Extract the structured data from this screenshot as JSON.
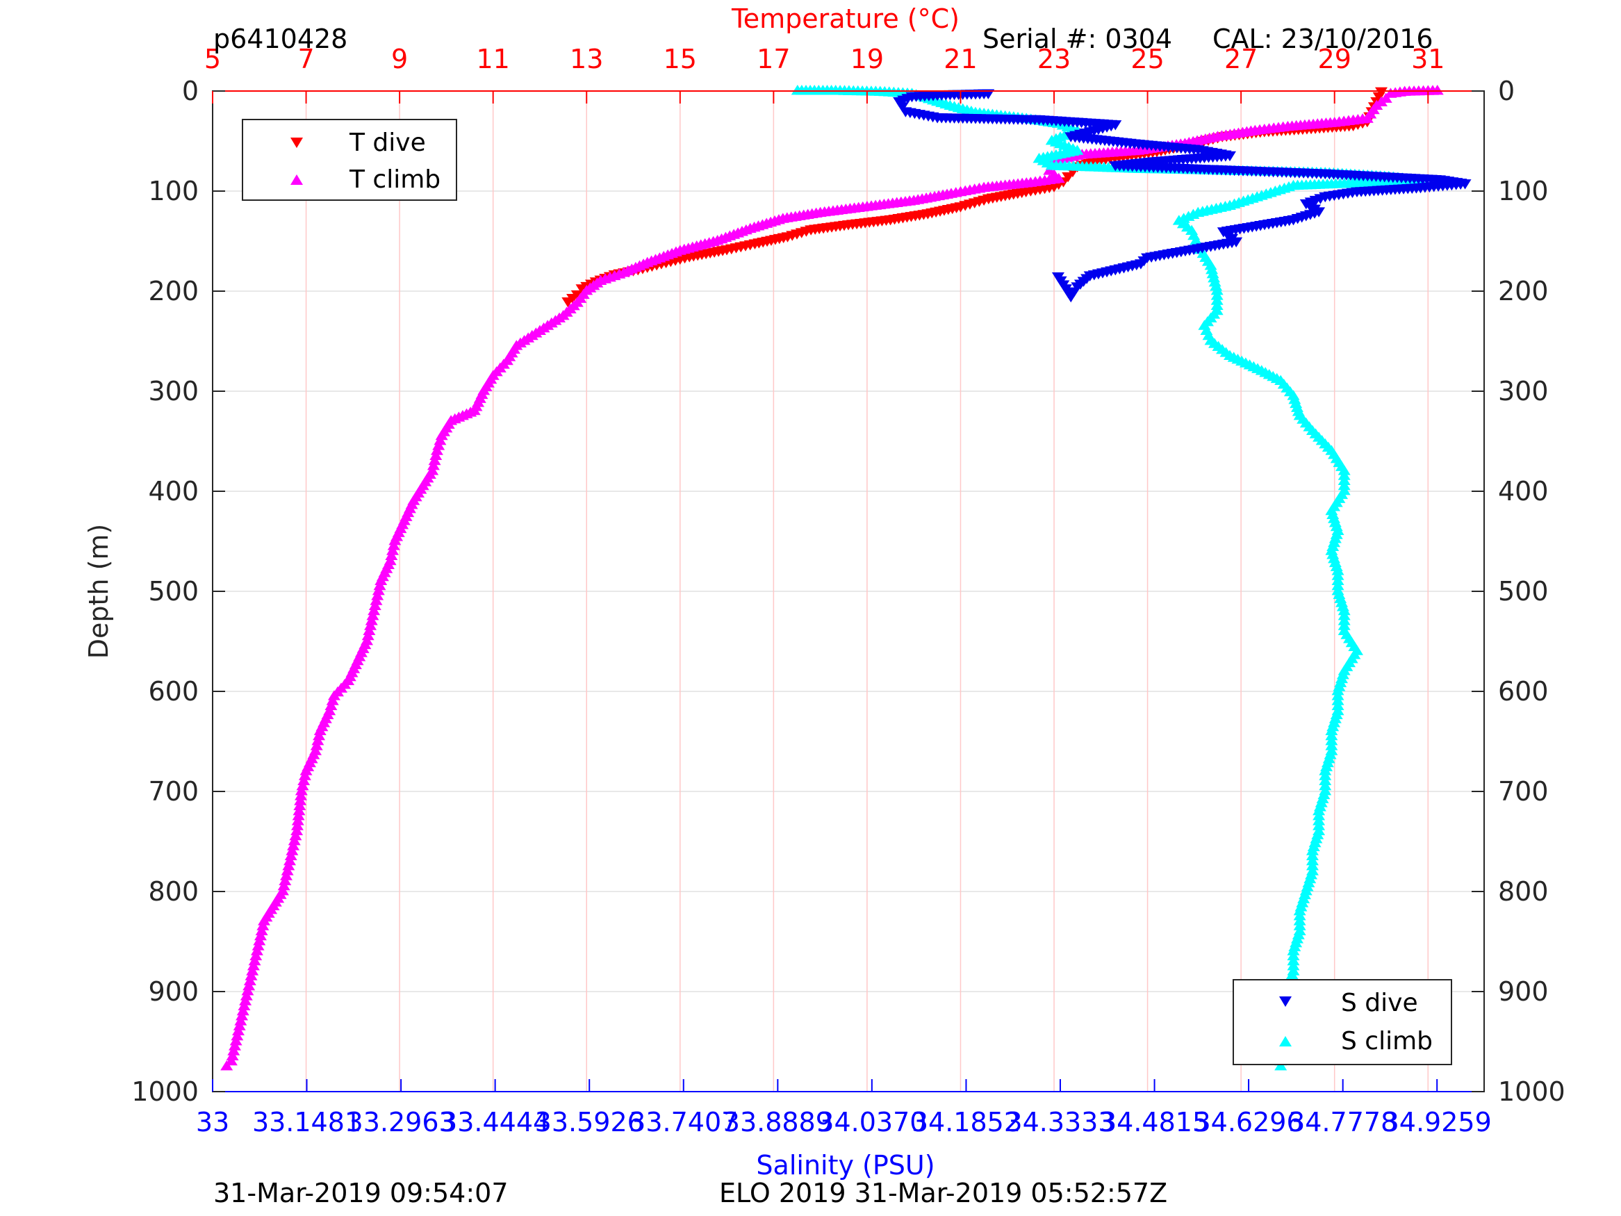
{
  "header": {
    "profile_id": "p6410428",
    "serial": "Serial #: 0304",
    "cal": "CAL: 23/10/2016"
  },
  "footer": {
    "left_timestamp": "31-Mar-2019 09:54:07",
    "center_label": "ELO 2019 31-Mar-2019 05:52:57Z"
  },
  "colors": {
    "t_dive": "#ff0000",
    "t_climb": "#ff00ff",
    "s_dive": "#0000ee",
    "s_climb": "#00ffff",
    "temp_axis": "#ff0000",
    "sal_axis": "#0000ff",
    "grid": "#e0e0e0",
    "temp_grid": "#ffc8c8"
  },
  "chart_data": {
    "type": "scatter",
    "title": "",
    "ylabel": "Depth (m)",
    "ylim": [
      0,
      1000
    ],
    "yreverse": true,
    "yticks": [
      "0",
      "100",
      "200",
      "300",
      "400",
      "500",
      "600",
      "700",
      "800",
      "900",
      "1000"
    ],
    "temp_axis": {
      "label": "Temperature (°C)",
      "lim": [
        5,
        32.2
      ],
      "ticks": [
        "5",
        "7",
        "9",
        "11",
        "13",
        "15",
        "17",
        "19",
        "21",
        "23",
        "25",
        "27",
        "29",
        "31"
      ]
    },
    "sal_axis": {
      "label": "Salinity (PSU)",
      "lim": [
        33,
        35.0
      ],
      "ticks": [
        "33",
        "33.1481",
        "33.2963",
        "33.4444",
        "33.5926",
        "33.7407",
        "33.8889",
        "34.0370",
        "34.1852",
        "34.3333",
        "34.4815",
        "34.6296",
        "34.7778",
        "34.9259"
      ]
    },
    "legend_temp": [
      {
        "name": "T dive",
        "marker": "triangle-down",
        "color": "#ff0000"
      },
      {
        "name": "T climb",
        "marker": "triangle-up",
        "color": "#ff00ff"
      }
    ],
    "legend_sal": [
      {
        "name": "S dive",
        "marker": "triangle-down",
        "color": "#0000ee"
      },
      {
        "name": "S climb",
        "marker": "triangle-up",
        "color": "#00ffff"
      }
    ],
    "series": [
      {
        "name": "T dive",
        "axis": "temp",
        "marker": "down",
        "color": "#ff0000",
        "points": [
          [
            30.0,
            0
          ],
          [
            29.95,
            5
          ],
          [
            29.9,
            10
          ],
          [
            29.8,
            20
          ],
          [
            29.7,
            30
          ],
          [
            29.4,
            34
          ],
          [
            28.5,
            37
          ],
          [
            27.5,
            40
          ],
          [
            26.6,
            45
          ],
          [
            26.0,
            52
          ],
          [
            25.2,
            60
          ],
          [
            24.3,
            66
          ],
          [
            23.8,
            70
          ],
          [
            23.5,
            75
          ],
          [
            23.4,
            80
          ],
          [
            23.3,
            85
          ],
          [
            23.2,
            90
          ],
          [
            23.0,
            95
          ],
          [
            22.4,
            100
          ],
          [
            21.6,
            107
          ],
          [
            21.0,
            115
          ],
          [
            20.3,
            122
          ],
          [
            19.5,
            128
          ],
          [
            18.6,
            133
          ],
          [
            17.8,
            138
          ],
          [
            17.3,
            145
          ],
          [
            16.6,
            152
          ],
          [
            16.0,
            158
          ],
          [
            15.2,
            165
          ],
          [
            14.6,
            172
          ],
          [
            14.1,
            178
          ],
          [
            13.6,
            183
          ],
          [
            13.2,
            190
          ],
          [
            12.9,
            197
          ],
          [
            12.8,
            203
          ],
          [
            12.6,
            210
          ]
        ]
      },
      {
        "name": "T climb",
        "axis": "temp",
        "marker": "up",
        "color": "#ff00ff",
        "points": [
          [
            31.2,
            0
          ],
          [
            30.5,
            1
          ],
          [
            30.2,
            3
          ],
          [
            30.1,
            8
          ],
          [
            29.9,
            15
          ],
          [
            29.7,
            28
          ],
          [
            29.0,
            32
          ],
          [
            28.0,
            36
          ],
          [
            27.3,
            40
          ],
          [
            26.5,
            46
          ],
          [
            25.8,
            53
          ],
          [
            24.8,
            60
          ],
          [
            23.6,
            64
          ],
          [
            23.0,
            70
          ],
          [
            22.9,
            80
          ],
          [
            23.1,
            88
          ],
          [
            22.5,
            92
          ],
          [
            21.5,
            97
          ],
          [
            20.8,
            103
          ],
          [
            20.0,
            110
          ],
          [
            19.0,
            116
          ],
          [
            18.0,
            122
          ],
          [
            17.2,
            128
          ],
          [
            16.5,
            138
          ],
          [
            15.8,
            150
          ],
          [
            15.0,
            160
          ],
          [
            14.3,
            172
          ],
          [
            13.8,
            182
          ],
          [
            13.3,
            190
          ],
          [
            13.0,
            200
          ],
          [
            12.8,
            212
          ],
          [
            12.5,
            225
          ],
          [
            12.0,
            240
          ],
          [
            11.5,
            255
          ],
          [
            11.3,
            270
          ],
          [
            11.0,
            285
          ],
          [
            10.8,
            300
          ],
          [
            10.6,
            320
          ],
          [
            10.1,
            330
          ],
          [
            9.9,
            345
          ],
          [
            9.8,
            360
          ],
          [
            9.7,
            380
          ],
          [
            9.5,
            395
          ],
          [
            9.3,
            410
          ],
          [
            9.1,
            430
          ],
          [
            8.9,
            450
          ],
          [
            8.8,
            470
          ],
          [
            8.6,
            490
          ],
          [
            8.5,
            510
          ],
          [
            8.4,
            530
          ],
          [
            8.3,
            550
          ],
          [
            8.1,
            570
          ],
          [
            7.9,
            590
          ],
          [
            7.6,
            605
          ],
          [
            7.5,
            620
          ],
          [
            7.3,
            640
          ],
          [
            7.2,
            660
          ],
          [
            7.0,
            680
          ],
          [
            6.9,
            700
          ],
          [
            6.85,
            720
          ],
          [
            6.8,
            740
          ],
          [
            6.7,
            760
          ],
          [
            6.6,
            780
          ],
          [
            6.5,
            800
          ],
          [
            6.3,
            815
          ],
          [
            6.1,
            830
          ],
          [
            6.0,
            850
          ],
          [
            5.9,
            870
          ],
          [
            5.8,
            890
          ],
          [
            5.7,
            910
          ],
          [
            5.6,
            930
          ],
          [
            5.5,
            950
          ],
          [
            5.4,
            970
          ],
          [
            5.3,
            975
          ]
        ]
      },
      {
        "name": "S dive",
        "axis": "sal",
        "marker": "down",
        "color": "#0000ee",
        "points": [
          [
            34.22,
            2
          ],
          [
            34.16,
            3
          ],
          [
            34.1,
            5
          ],
          [
            34.08,
            10
          ],
          [
            34.09,
            20
          ],
          [
            34.14,
            26
          ],
          [
            34.3,
            28
          ],
          [
            34.42,
            33
          ],
          [
            34.38,
            40
          ],
          [
            34.35,
            45
          ],
          [
            34.45,
            52
          ],
          [
            34.55,
            58
          ],
          [
            34.6,
            64
          ],
          [
            34.48,
            70
          ],
          [
            34.42,
            74
          ],
          [
            34.58,
            78
          ],
          [
            34.75,
            82
          ],
          [
            34.93,
            88
          ],
          [
            34.97,
            92
          ],
          [
            34.9,
            96
          ],
          [
            34.8,
            100
          ],
          [
            34.75,
            105
          ],
          [
            34.72,
            112
          ],
          [
            34.74,
            120
          ],
          [
            34.7,
            128
          ],
          [
            34.59,
            140
          ],
          [
            34.61,
            150
          ],
          [
            34.47,
            166
          ],
          [
            34.46,
            172
          ],
          [
            34.42,
            178
          ],
          [
            34.38,
            184
          ],
          [
            34.36,
            195
          ],
          [
            34.35,
            205
          ],
          [
            34.33,
            185
          ]
        ]
      },
      {
        "name": "S climb",
        "axis": "sal",
        "marker": "up",
        "color": "#00ffff",
        "points": [
          [
            33.92,
            0
          ],
          [
            33.98,
            0
          ],
          [
            34.05,
            1
          ],
          [
            34.1,
            3
          ],
          [
            34.16,
            15
          ],
          [
            34.2,
            22
          ],
          [
            34.28,
            28
          ],
          [
            34.33,
            33
          ],
          [
            34.36,
            40
          ],
          [
            34.32,
            50
          ],
          [
            34.36,
            60
          ],
          [
            34.3,
            68
          ],
          [
            34.32,
            75
          ],
          [
            34.45,
            78
          ],
          [
            34.6,
            80
          ],
          [
            34.75,
            82
          ],
          [
            34.85,
            86
          ],
          [
            34.9,
            90
          ],
          [
            34.7,
            95
          ],
          [
            34.65,
            105
          ],
          [
            34.6,
            115
          ],
          [
            34.55,
            122
          ],
          [
            34.52,
            130
          ],
          [
            34.54,
            140
          ],
          [
            34.55,
            155
          ],
          [
            34.57,
            175
          ],
          [
            34.58,
            200
          ],
          [
            34.58,
            220
          ],
          [
            34.56,
            235
          ],
          [
            34.57,
            250
          ],
          [
            34.6,
            265
          ],
          [
            34.65,
            280
          ],
          [
            34.68,
            290
          ],
          [
            34.7,
            305
          ],
          [
            34.71,
            325
          ],
          [
            34.73,
            340
          ],
          [
            34.76,
            360
          ],
          [
            34.78,
            380
          ],
          [
            34.78,
            400
          ],
          [
            34.76,
            420
          ],
          [
            34.77,
            440
          ],
          [
            34.76,
            460
          ],
          [
            34.77,
            480
          ],
          [
            34.77,
            500
          ],
          [
            34.78,
            520
          ],
          [
            34.78,
            540
          ],
          [
            34.8,
            560
          ],
          [
            34.78,
            580
          ],
          [
            34.77,
            600
          ],
          [
            34.77,
            620
          ],
          [
            34.76,
            640
          ],
          [
            34.76,
            660
          ],
          [
            34.75,
            680
          ],
          [
            34.75,
            700
          ],
          [
            34.74,
            720
          ],
          [
            34.74,
            740
          ],
          [
            34.73,
            760
          ],
          [
            34.73,
            780
          ],
          [
            34.72,
            800
          ],
          [
            34.71,
            820
          ],
          [
            34.71,
            840
          ],
          [
            34.7,
            860
          ],
          [
            34.7,
            880
          ],
          [
            34.69,
            900
          ],
          [
            34.69,
            920
          ],
          [
            34.69,
            940
          ],
          [
            34.68,
            960
          ],
          [
            34.68,
            975
          ]
        ]
      }
    ]
  }
}
